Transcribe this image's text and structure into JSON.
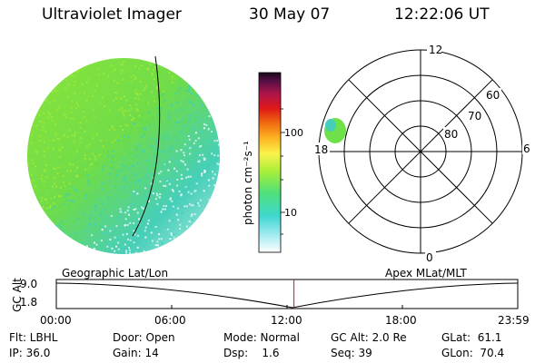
{
  "header": {
    "instrument": "Ultraviolet Imager",
    "date": "30 May 07",
    "time": "12:22:06 UT"
  },
  "colorbar": {
    "label": "photon cm⁻²s⁻¹",
    "ticks": [
      "100",
      "10"
    ]
  },
  "polar_plot": {
    "mlt_labels": {
      "noon": "12",
      "midnight": "0",
      "dawn": "6",
      "dusk": "18"
    },
    "lat_labels": [
      "60",
      "70",
      "80"
    ]
  },
  "timeline": {
    "left_title": "Geographic Lat/Lon",
    "right_title": "Apex MLat/MLT",
    "axis_label": "GC Alt",
    "y_ticks": [
      "9.0",
      "1.8"
    ],
    "x_ticks": [
      "00:00",
      "06:00",
      "12:00",
      "18:00",
      "23:59"
    ],
    "current_time_fraction": 0.515
  },
  "info": {
    "flt": "Flt: LBHL",
    "ip": "IP: 36.0",
    "door": "Door: Open",
    "gain": "Gain: 14",
    "mode": "Mode: Normal",
    "dsp": "Dsp:    1.6",
    "gcalt": "GC Alt: 2.0 Re",
    "seq": "Seq: 39",
    "glat": "GLat:  61.1",
    "glon": "GLon:  70.4"
  },
  "colors": {
    "image_green": "#7ee23a",
    "image_cyan": "#4fd6c8",
    "current_time_marker": "#ff0000"
  }
}
